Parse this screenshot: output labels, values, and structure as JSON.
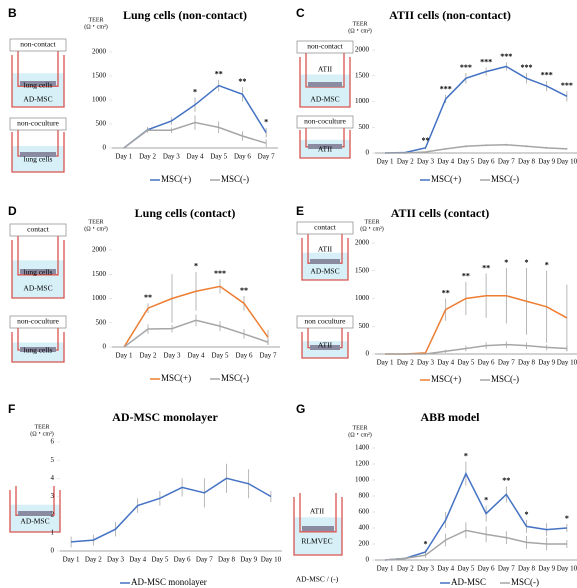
{
  "chart_data": [
    {
      "type": "line",
      "panel": "B",
      "title": "Lung cells (non-contact)",
      "y_label": [
        "TEER",
        "(Ω・cm²)"
      ],
      "diagram_labels": [
        "non-contact",
        "lung cells",
        "AD-MSC",
        "non-coculture",
        "lung cells"
      ],
      "categories": [
        "Day 1",
        "Day 2",
        "Day 3",
        "Day 4",
        "Day 5",
        "Day 6",
        "Day 7"
      ],
      "series": [
        {
          "name": "MSC(+)",
          "color": "#4472c4",
          "values": [
            0,
            380,
            560,
            900,
            1300,
            1120,
            320
          ],
          "errors": [
            0,
            60,
            80,
            150,
            120,
            150,
            100
          ]
        },
        {
          "name": "MSC(-)",
          "color": "#a6a6a6",
          "values": [
            0,
            370,
            370,
            530,
            430,
            250,
            100
          ],
          "errors": [
            0,
            40,
            60,
            150,
            120,
            100,
            80
          ]
        }
      ],
      "significance": [
        null,
        null,
        null,
        "*",
        "**",
        "**",
        "*"
      ],
      "ylim": [
        0,
        2000
      ],
      "yticks": [
        0,
        500,
        1000,
        1500,
        2000
      ]
    },
    {
      "type": "line",
      "panel": "C",
      "title": "ATII cells (non-contact)",
      "y_label": [
        "TEER",
        "(Ω・cm²)"
      ],
      "diagram_labels": [
        "non-contact",
        "ATII",
        "AD-MSC",
        "non-coculture",
        "ATII"
      ],
      "categories": [
        "Day 1",
        "Day 2",
        "Day 3",
        "Day 4",
        "Day 5",
        "Day 6",
        "Day 7",
        "Day 8",
        "Day 9",
        "Day 10"
      ],
      "series": [
        {
          "name": "MSC(+)",
          "color": "#4472c4",
          "values": [
            0,
            10,
            100,
            1050,
            1450,
            1580,
            1680,
            1450,
            1300,
            1100
          ],
          "errors": [
            0,
            10,
            30,
            80,
            100,
            80,
            80,
            100,
            100,
            100
          ]
        },
        {
          "name": "MSC(-)",
          "color": "#a6a6a6",
          "values": [
            0,
            0,
            20,
            80,
            130,
            150,
            160,
            130,
            100,
            80
          ],
          "errors": [
            0,
            0,
            10,
            20,
            20,
            20,
            20,
            20,
            20,
            20
          ]
        }
      ],
      "significance": [
        null,
        null,
        "**",
        "***",
        "***",
        "***",
        "***",
        "***",
        "***",
        "***"
      ],
      "ylim": [
        0,
        2000
      ],
      "yticks": [
        0,
        500,
        1000,
        1500,
        2000
      ]
    },
    {
      "type": "line",
      "panel": "D",
      "title": "Lung cells (contact)",
      "y_label": [
        "TEER",
        "(Ω・cm²)"
      ],
      "diagram_labels": [
        "contact",
        "lung cells",
        "AD-MSC",
        "non-coculture",
        "lung cells"
      ],
      "categories": [
        "Day 1",
        "Day 2",
        "Day 3",
        "Day 4",
        "Day 5",
        "Day 6",
        "Day 7"
      ],
      "series": [
        {
          "name": "MSC(+)",
          "color": "#ed7d31",
          "values": [
            0,
            800,
            1000,
            1150,
            1250,
            900,
            200
          ],
          "errors": [
            0,
            100,
            500,
            400,
            150,
            150,
            150
          ]
        },
        {
          "name": "MSC(-)",
          "color": "#a6a6a6",
          "values": [
            0,
            370,
            380,
            550,
            430,
            270,
            100
          ],
          "errors": [
            0,
            100,
            80,
            120,
            100,
            100,
            60
          ]
        }
      ],
      "significance": [
        null,
        "**",
        null,
        "*",
        "***",
        "**",
        null
      ],
      "ylim": [
        0,
        2000
      ],
      "yticks": [
        0,
        500,
        1000,
        1500,
        2000
      ]
    },
    {
      "type": "line",
      "panel": "E",
      "title": "ATII cells (contact)",
      "y_label": [
        "TEER",
        "(Ω・cm²)"
      ],
      "diagram_labels": [
        "contact",
        "ATII",
        "AD-MSC",
        "non coculture",
        "ATII"
      ],
      "categories": [
        "Day 1",
        "Day 2",
        "Day 3",
        "Day 4",
        "Day 5",
        "Day 6",
        "Day 7",
        "Day 8",
        "Day 9",
        "Day 10"
      ],
      "series": [
        {
          "name": "MSC(+)",
          "color": "#ed7d31",
          "values": [
            0,
            0,
            20,
            800,
            1000,
            1050,
            1050,
            950,
            850,
            650
          ],
          "errors": [
            0,
            0,
            20,
            200,
            300,
            400,
            500,
            600,
            650,
            600
          ]
        },
        {
          "name": "MSC(-)",
          "color": "#a6a6a6",
          "values": [
            0,
            0,
            0,
            50,
            100,
            150,
            170,
            150,
            120,
            100
          ],
          "errors": [
            0,
            0,
            0,
            30,
            50,
            60,
            60,
            60,
            50,
            50
          ]
        }
      ],
      "significance": [
        null,
        null,
        null,
        "**",
        "**",
        "**",
        "*",
        "*",
        "*",
        null
      ],
      "ylim": [
        0,
        2000
      ],
      "yticks": [
        0,
        500,
        1000,
        1500,
        2000
      ]
    },
    {
      "type": "line",
      "panel": "F",
      "title": "AD-MSC monolayer",
      "y_label": [
        "TEER",
        "(Ω・cm²)"
      ],
      "diagram_labels": [
        "AD-MSC"
      ],
      "categories": [
        "Day 1",
        "Day 2",
        "Day 3",
        "Day 4",
        "Day 5",
        "Day 6",
        "Day 7",
        "Day 8",
        "Day 9",
        "Day 10"
      ],
      "series": [
        {
          "name": "AD-MSC monolayer",
          "color": "#4472c4",
          "values": [
            0.5,
            0.6,
            1.2,
            2.5,
            2.9,
            3.5,
            3.2,
            4.0,
            3.7,
            3.0
          ],
          "errors": [
            0.3,
            0.3,
            0.4,
            0.4,
            0.4,
            0.5,
            0.8,
            0.8,
            0.8,
            0.3
          ]
        }
      ],
      "significance": [
        null,
        null,
        null,
        null,
        null,
        null,
        null,
        null,
        null,
        null
      ],
      "ylim": [
        0,
        6
      ],
      "yticks": [
        0,
        1,
        2,
        3,
        4,
        5,
        6
      ]
    },
    {
      "type": "line",
      "panel": "G",
      "title": "ABB model",
      "y_label": [
        "TEER",
        "(Ω・cm²)"
      ],
      "diagram_labels": [
        "ATII",
        "RLMVEC",
        "AD-MSC / (-)"
      ],
      "categories": [
        "Day 1",
        "Day 2",
        "Day 3",
        "Day 4",
        "Day 5",
        "Day 6",
        "Day 7",
        "Day 8",
        "Day 9",
        "Day 10"
      ],
      "series": [
        {
          "name": "AD-MSC",
          "color": "#4472c4",
          "values": [
            0,
            20,
            100,
            500,
            1080,
            580,
            820,
            420,
            380,
            400
          ],
          "errors": [
            0,
            10,
            30,
            100,
            150,
            100,
            100,
            80,
            80,
            50
          ]
        },
        {
          "name": "MSC(-)",
          "color": "#a6a6a6",
          "values": [
            0,
            20,
            60,
            250,
            370,
            320,
            280,
            220,
            200,
            200
          ],
          "errors": [
            0,
            10,
            30,
            80,
            100,
            100,
            80,
            80,
            80,
            50
          ]
        }
      ],
      "significance": [
        null,
        null,
        "*",
        null,
        "*",
        "*",
        "**",
        "*",
        null,
        "*"
      ],
      "ylim": [
        0,
        1400
      ],
      "yticks": [
        0,
        200,
        400,
        600,
        800,
        1000,
        1200,
        1400
      ]
    }
  ]
}
